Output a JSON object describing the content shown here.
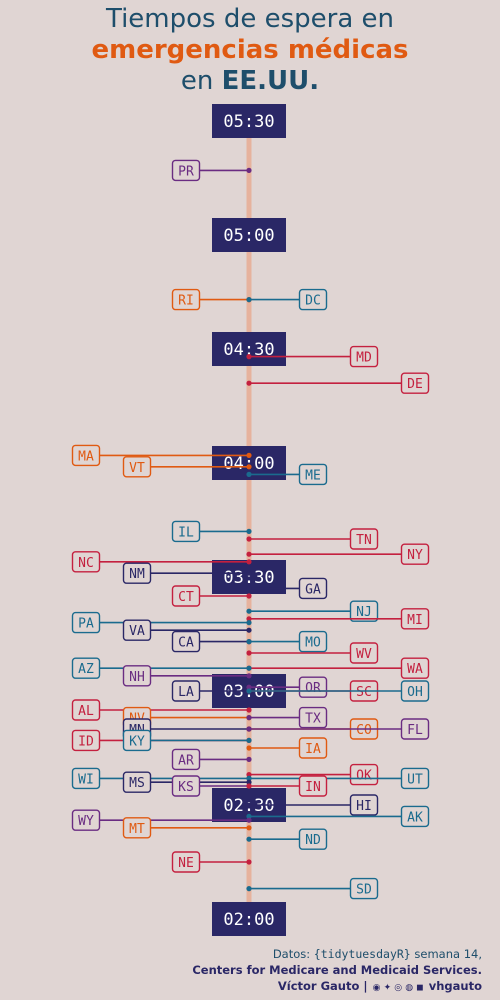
{
  "title": {
    "line1": "Tiempos de espera en",
    "line2": "emergencias médicas",
    "line3_prefix": "en ",
    "line3_bold": "EE.UU."
  },
  "colors": {
    "background": "#e0d5d3",
    "axis": "#e6b29d",
    "time_box": "#2a2766",
    "red": "#c4203f",
    "orange": "#e05a12",
    "purple": "#6a2c82",
    "blue": "#1a6b8e",
    "navy": "#2a2766"
  },
  "chart_data": {
    "type": "scatter",
    "title": "Tiempos de espera en emergencias médicas en EE.UU.",
    "y_unit": "minutes (hh:mm)",
    "ylim": [
      120,
      330
    ],
    "time_ticks": [
      {
        "label": "05:30",
        "minutes": 330
      },
      {
        "label": "05:00",
        "minutes": 300
      },
      {
        "label": "04:30",
        "minutes": 270
      },
      {
        "label": "04:00",
        "minutes": 240
      },
      {
        "label": "03:30",
        "minutes": 210
      },
      {
        "label": "03:00",
        "minutes": 180
      },
      {
        "label": "02:30",
        "minutes": 150
      },
      {
        "label": "02:00",
        "minutes": 120
      }
    ],
    "states": [
      {
        "state": "PR",
        "minutes": 317,
        "side": "left",
        "tier": 1,
        "color": "purple"
      },
      {
        "state": "RI",
        "minutes": 283,
        "side": "left",
        "tier": 1,
        "color": "orange"
      },
      {
        "state": "DC",
        "minutes": 283,
        "side": "right",
        "tier": 1,
        "color": "blue"
      },
      {
        "state": "MD",
        "minutes": 268,
        "side": "right",
        "tier": 2,
        "color": "red"
      },
      {
        "state": "DE",
        "minutes": 261,
        "side": "right",
        "tier": 3,
        "color": "red"
      },
      {
        "state": "MA",
        "minutes": 242,
        "side": "left",
        "tier": 3,
        "color": "orange"
      },
      {
        "state": "VT",
        "minutes": 239,
        "side": "left",
        "tier": 2,
        "color": "orange"
      },
      {
        "state": "ME",
        "minutes": 237,
        "side": "right",
        "tier": 1,
        "color": "blue"
      },
      {
        "state": "IL",
        "minutes": 222,
        "side": "left",
        "tier": 1,
        "color": "blue"
      },
      {
        "state": "TN",
        "minutes": 220,
        "side": "right",
        "tier": 2,
        "color": "red"
      },
      {
        "state": "NY",
        "minutes": 216,
        "side": "right",
        "tier": 3,
        "color": "red"
      },
      {
        "state": "NC",
        "minutes": 214,
        "side": "left",
        "tier": 3,
        "color": "red"
      },
      {
        "state": "NM",
        "minutes": 211,
        "side": "left",
        "tier": 2,
        "color": "navy"
      },
      {
        "state": "CT",
        "minutes": 205,
        "side": "left",
        "tier": 1,
        "color": "red"
      },
      {
        "state": "GA",
        "minutes": 207,
        "side": "right",
        "tier": 1,
        "color": "navy"
      },
      {
        "state": "NJ",
        "minutes": 201,
        "side": "right",
        "tier": 2,
        "color": "blue"
      },
      {
        "state": "MI",
        "minutes": 199,
        "side": "right",
        "tier": 3,
        "color": "red"
      },
      {
        "state": "PA",
        "minutes": 198,
        "side": "left",
        "tier": 3,
        "color": "blue"
      },
      {
        "state": "VA",
        "minutes": 196,
        "side": "left",
        "tier": 2,
        "color": "navy"
      },
      {
        "state": "CA",
        "minutes": 193,
        "side": "left",
        "tier": 1,
        "color": "navy"
      },
      {
        "state": "MO",
        "minutes": 193,
        "side": "right",
        "tier": 1,
        "color": "blue"
      },
      {
        "state": "WV",
        "minutes": 190,
        "side": "right",
        "tier": 2,
        "color": "red"
      },
      {
        "state": "WA",
        "minutes": 186,
        "side": "right",
        "tier": 3,
        "color": "red"
      },
      {
        "state": "AZ",
        "minutes": 186,
        "side": "left",
        "tier": 3,
        "color": "blue"
      },
      {
        "state": "NH",
        "minutes": 184,
        "side": "left",
        "tier": 2,
        "color": "purple"
      },
      {
        "state": "LA",
        "minutes": 180,
        "side": "left",
        "tier": 1,
        "color": "navy"
      },
      {
        "state": "OR",
        "minutes": 181,
        "side": "right",
        "tier": 1,
        "color": "purple"
      },
      {
        "state": "SC",
        "minutes": 180,
        "side": "right",
        "tier": 2,
        "color": "red"
      },
      {
        "state": "OH",
        "minutes": 180,
        "side": "right",
        "tier": 3,
        "color": "blue"
      },
      {
        "state": "AL",
        "minutes": 175,
        "side": "left",
        "tier": 3,
        "color": "red"
      },
      {
        "state": "NV",
        "minutes": 173,
        "side": "left",
        "tier": 2,
        "color": "orange"
      },
      {
        "state": "TX",
        "minutes": 173,
        "side": "right",
        "tier": 1,
        "color": "purple"
      },
      {
        "state": "MN",
        "minutes": 170,
        "side": "left",
        "tier": 2,
        "color": "navy"
      },
      {
        "state": "CO",
        "minutes": 170,
        "side": "right",
        "tier": 2,
        "color": "orange"
      },
      {
        "state": "FL",
        "minutes": 170,
        "side": "right",
        "tier": 3,
        "color": "purple"
      },
      {
        "state": "ID",
        "minutes": 167,
        "side": "left",
        "tier": 3,
        "color": "red"
      },
      {
        "state": "KY",
        "minutes": 167,
        "side": "left",
        "tier": 2,
        "color": "blue"
      },
      {
        "state": "IA",
        "minutes": 165,
        "side": "right",
        "tier": 1,
        "color": "orange"
      },
      {
        "state": "AR",
        "minutes": 162,
        "side": "left",
        "tier": 1,
        "color": "purple"
      },
      {
        "state": "OK",
        "minutes": 158,
        "side": "right",
        "tier": 2,
        "color": "red"
      },
      {
        "state": "UT",
        "minutes": 157,
        "side": "right",
        "tier": 3,
        "color": "blue"
      },
      {
        "state": "WI",
        "minutes": 157,
        "side": "left",
        "tier": 3,
        "color": "blue"
      },
      {
        "state": "MS",
        "minutes": 156,
        "side": "left",
        "tier": 2,
        "color": "navy"
      },
      {
        "state": "KS",
        "minutes": 155,
        "side": "left",
        "tier": 1,
        "color": "purple"
      },
      {
        "state": "IN",
        "minutes": 155,
        "side": "right",
        "tier": 1,
        "color": "red"
      },
      {
        "state": "HI",
        "minutes": 150,
        "side": "right",
        "tier": 2,
        "color": "navy"
      },
      {
        "state": "AK",
        "minutes": 147,
        "side": "right",
        "tier": 3,
        "color": "blue"
      },
      {
        "state": "WY",
        "minutes": 146,
        "side": "left",
        "tier": 3,
        "color": "purple"
      },
      {
        "state": "MT",
        "minutes": 144,
        "side": "left",
        "tier": 2,
        "color": "orange"
      },
      {
        "state": "ND",
        "minutes": 141,
        "side": "right",
        "tier": 1,
        "color": "blue"
      },
      {
        "state": "NE",
        "minutes": 135,
        "side": "left",
        "tier": 1,
        "color": "red"
      },
      {
        "state": "SD",
        "minutes": 128,
        "side": "right",
        "tier": 2,
        "color": "blue"
      }
    ]
  },
  "caption": {
    "datos_prefix": "Datos: ",
    "datos_source": "{tidytuesdayR}",
    "datos_suffix": " semana 14,",
    "line2": "Centers for Medicare and Medicaid Services.",
    "author": "Víctor Gauto",
    "separator": "|",
    "icons": "◉ ✦ ◎ ◍ ◼",
    "handle": "vhgauto"
  }
}
